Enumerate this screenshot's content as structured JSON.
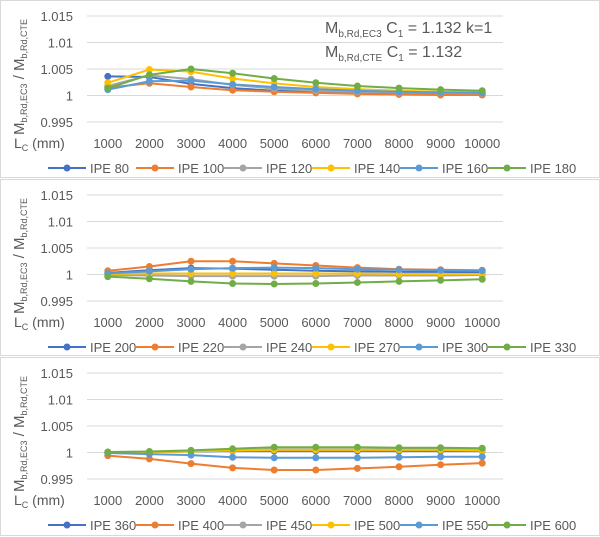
{
  "chart_data": [
    {
      "type": "line",
      "categories": [
        1000,
        2000,
        3000,
        4000,
        5000,
        6000,
        7000,
        8000,
        9000,
        10000
      ],
      "xlabel": {
        "main": "L",
        "sub": "C",
        "rest": " (mm)"
      },
      "ylabel": {
        "m1": "M",
        "s1": "b,Rd,EC3",
        "sep": " / ",
        "m2": "M",
        "s2": "b,Rd,CTE"
      },
      "ylim": [
        0.995,
        1.015
      ],
      "yticks": [
        "0.995",
        "1",
        "1.005",
        "1.01",
        "1.015"
      ],
      "grid": true,
      "legend": "bottom",
      "annotation": [
        {
          "m": "M",
          "s": "b,Rd,EC3",
          "c": "C",
          "cs": "1",
          "rest": " = 1.132 k=1"
        },
        {
          "m": "M",
          "s": "b,Rd,CTE",
          "c": "C",
          "cs": "1",
          "rest": " = 1.132"
        }
      ],
      "series": [
        {
          "name": "IPE 80",
          "color": "#4472C4",
          "values": [
            1.0036,
            1.0035,
            1.0022,
            1.0014,
            1.0009,
            1.0007,
            1.0005,
            1.0004,
            1.0003,
            1.0003
          ]
        },
        {
          "name": "IPE 100",
          "color": "#ED7D31",
          "values": [
            1.0015,
            1.0023,
            1.0016,
            1.001,
            1.0007,
            1.0005,
            1.0003,
            1.0002,
            1.0001,
            1.0001
          ]
        },
        {
          "name": "IPE 120",
          "color": "#A5A5A5",
          "values": [
            1.0018,
            1.0038,
            1.0031,
            1.002,
            1.0013,
            1.0009,
            1.0007,
            1.0006,
            1.0005,
            1.0004
          ]
        },
        {
          "name": "IPE 140",
          "color": "#FFC000",
          "values": [
            1.0024,
            1.0049,
            1.0045,
            1.0032,
            1.0023,
            1.0016,
            1.0012,
            1.0009,
            1.0007,
            1.0006
          ]
        },
        {
          "name": "IPE 160",
          "color": "#5B9BD5",
          "values": [
            1.0011,
            1.0027,
            1.0028,
            1.0021,
            1.0016,
            1.0012,
            1.0009,
            1.0007,
            1.0006,
            1.0005
          ]
        },
        {
          "name": "IPE 180",
          "color": "#70AD47",
          "values": [
            1.0014,
            1.0039,
            1.005,
            1.0042,
            1.0032,
            1.0024,
            1.0018,
            1.0014,
            1.0011,
            1.0009
          ]
        }
      ]
    },
    {
      "type": "line",
      "categories": [
        1000,
        2000,
        3000,
        4000,
        5000,
        6000,
        7000,
        8000,
        9000,
        10000
      ],
      "xlabel": {
        "main": "L",
        "sub": "C",
        "rest": " (mm)"
      },
      "ylabel": {
        "m1": "M",
        "s1": "b,Rd,EC3",
        "sep": " / ",
        "m2": "M",
        "s2": "b,Rd,CTE"
      },
      "ylim": [
        0.995,
        1.015
      ],
      "yticks": [
        "0.995",
        "1",
        "1.005",
        "1.01",
        "1.015"
      ],
      "grid": true,
      "legend": "bottom",
      "series": [
        {
          "name": "IPE 200",
          "color": "#4472C4",
          "values": [
            1.0003,
            1.0008,
            1.0012,
            1.0011,
            1.0009,
            1.0007,
            1.0006,
            1.0005,
            1.0005,
            1.0004
          ]
        },
        {
          "name": "IPE 220",
          "color": "#ED7D31",
          "values": [
            1.0007,
            1.0015,
            1.0025,
            1.0025,
            1.0021,
            1.0017,
            1.0013,
            1.001,
            1.0009,
            1.0008
          ]
        },
        {
          "name": "IPE 240",
          "color": "#A5A5A5",
          "values": [
            0.9999,
            0.9998,
            0.9997,
            0.9997,
            0.9997,
            0.9997,
            0.9998,
            0.9998,
            0.9998,
            0.9999
          ]
        },
        {
          "name": "IPE 270",
          "color": "#FFC000",
          "values": [
            1.0001,
            1.0002,
            1.0002,
            1.0002,
            1.0002,
            1.0002,
            1.0002,
            1.0001,
            1.0001,
            1.0001
          ]
        },
        {
          "name": "IPE 300",
          "color": "#5B9BD5",
          "values": [
            1.0002,
            1.0006,
            1.001,
            1.0012,
            1.0013,
            1.0012,
            1.001,
            1.0009,
            1.0008,
            1.0007
          ]
        },
        {
          "name": "IPE 330",
          "color": "#70AD47",
          "values": [
            0.9996,
            0.9992,
            0.9987,
            0.9983,
            0.9982,
            0.9983,
            0.9985,
            0.9987,
            0.9989,
            0.9991
          ]
        }
      ]
    },
    {
      "type": "line",
      "categories": [
        1000,
        2000,
        3000,
        4000,
        5000,
        6000,
        7000,
        8000,
        9000,
        10000
      ],
      "xlabel": {
        "main": "L",
        "sub": "C",
        "rest": " (mm)"
      },
      "ylabel": {
        "m1": "M",
        "s1": "b,Rd,EC3",
        "sep": " / ",
        "m2": "M",
        "s2": "b,Rd,CTE"
      },
      "ylim": [
        0.995,
        1.015
      ],
      "yticks": [
        "0.995",
        "1",
        "1.005",
        "1.01",
        "1.015"
      ],
      "grid": true,
      "legend": "bottom",
      "series": [
        {
          "name": "IPE 360",
          "color": "#4472C4",
          "values": [
            1.0,
            1.0001,
            1.0002,
            1.0003,
            1.0003,
            1.0003,
            1.0003,
            1.0003,
            1.0003,
            1.0003
          ]
        },
        {
          "name": "IPE 400",
          "color": "#ED7D31",
          "values": [
            0.9994,
            0.9988,
            0.9979,
            0.9971,
            0.9967,
            0.9967,
            0.997,
            0.9973,
            0.9977,
            0.998
          ]
        },
        {
          "name": "IPE 450",
          "color": "#A5A5A5",
          "values": [
            1.0,
            1.0001,
            1.0002,
            1.0004,
            1.0006,
            1.0006,
            1.0006,
            1.0006,
            1.0006,
            1.0005
          ]
        },
        {
          "name": "IPE 500",
          "color": "#FFC000",
          "values": [
            1.0,
            1.0001,
            1.0002,
            1.0004,
            1.0005,
            1.0005,
            1.0005,
            1.0005,
            1.0005,
            1.0004
          ]
        },
        {
          "name": "IPE 550",
          "color": "#5B9BD5",
          "values": [
            0.9999,
            0.9997,
            0.9995,
            0.9991,
            0.999,
            0.999,
            0.999,
            0.9991,
            0.9992,
            0.9992
          ]
        },
        {
          "name": "IPE 600",
          "color": "#70AD47",
          "values": [
            1.0001,
            1.0002,
            1.0004,
            1.0007,
            1.001,
            1.001,
            1.001,
            1.0009,
            1.0009,
            1.0008
          ]
        }
      ]
    }
  ]
}
